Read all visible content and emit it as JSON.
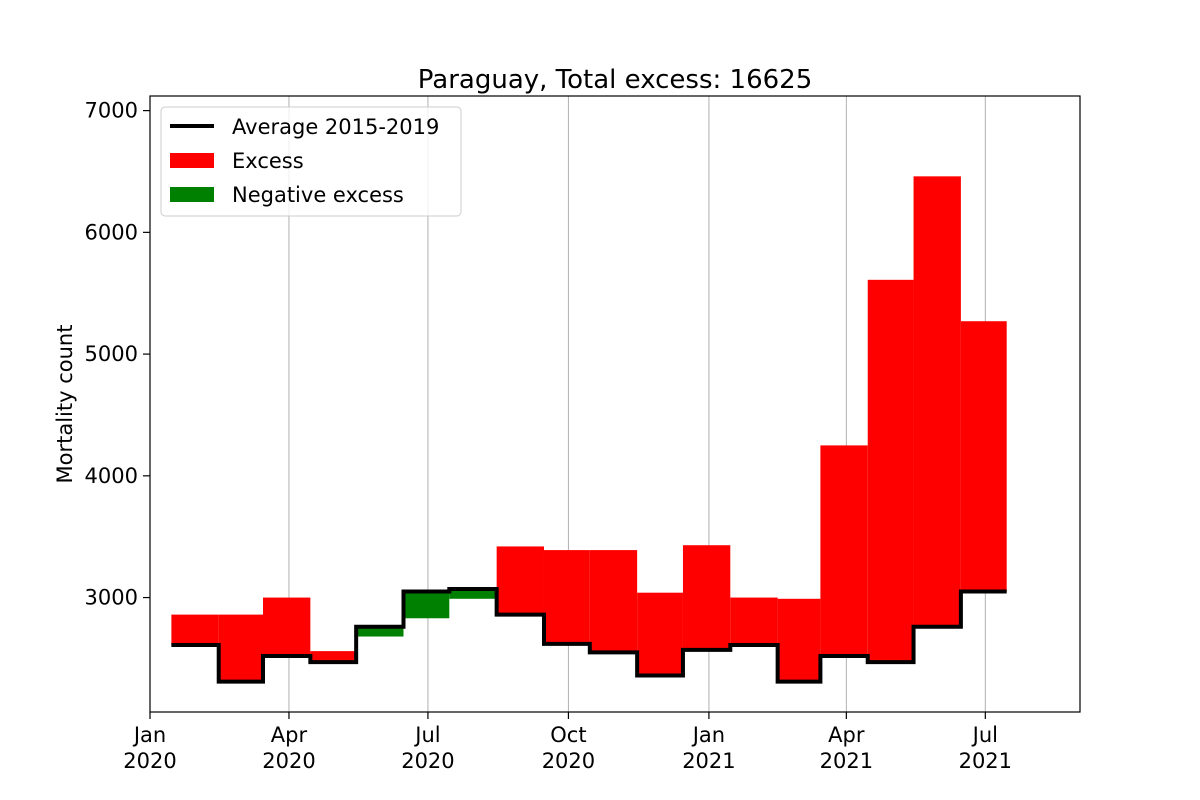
{
  "chart_data": {
    "type": "area",
    "title": "Paraguay, Total excess: 16625",
    "xlabel": "",
    "ylabel": "Mortality count",
    "xlim": [
      "2020-01-01",
      "2021-09-01"
    ],
    "ylim": [
      2060,
      7120
    ],
    "y_ticks": [
      3000,
      4000,
      5000,
      6000,
      7000
    ],
    "x_ticks": [
      {
        "date": "2020-01-01",
        "line1": "Jan",
        "line2": "2020"
      },
      {
        "date": "2020-04-01",
        "line1": "Apr",
        "line2": "2020"
      },
      {
        "date": "2020-07-01",
        "line1": "Jul",
        "line2": "2020"
      },
      {
        "date": "2020-10-01",
        "line1": "Oct",
        "line2": "2020"
      },
      {
        "date": "2021-01-01",
        "line1": "Jan",
        "line2": "2021"
      },
      {
        "date": "2021-04-01",
        "line1": "Apr",
        "line2": "2021"
      },
      {
        "date": "2021-07-01",
        "line1": "Jul",
        "line2": "2021"
      }
    ],
    "grid": "vertical",
    "legend_position": "upper-left",
    "legend": [
      {
        "label": "Average 2015-2019",
        "kind": "line",
        "color": "#000000"
      },
      {
        "label": "Excess",
        "kind": "patch",
        "color": "#ff0000"
      },
      {
        "label": "Negative excess",
        "kind": "patch",
        "color": "#008000"
      }
    ],
    "colors": {
      "average": "#000000",
      "excess": "#ff0000",
      "negative": "#008000",
      "grid": "#b0b0b0"
    },
    "step_edges": [
      "2020-01-15",
      "2020-02-15",
      "2020-03-15",
      "2020-04-15",
      "2020-05-15",
      "2020-06-15",
      "2020-07-15",
      "2020-08-15",
      "2020-09-15",
      "2020-10-15",
      "2020-11-15",
      "2020-12-15",
      "2021-01-15",
      "2021-02-15",
      "2021-03-15",
      "2021-04-15",
      "2021-05-15",
      "2021-06-15",
      "2021-07-15"
    ],
    "series": [
      {
        "name": "Average 2015-2019",
        "values": [
          2610,
          2310,
          2520,
          2470,
          2760,
          3050,
          3070,
          2860,
          2620,
          2550,
          2360,
          2570,
          2610,
          2310,
          2520,
          2470,
          2760,
          3050
        ]
      },
      {
        "name": "Excess",
        "values": [
          2860,
          2860,
          3000,
          2560,
          2680,
          2830,
          2990,
          3420,
          3390,
          3390,
          3040,
          3430,
          3000,
          2990,
          4250,
          5610,
          6460,
          5270
        ]
      }
    ]
  }
}
